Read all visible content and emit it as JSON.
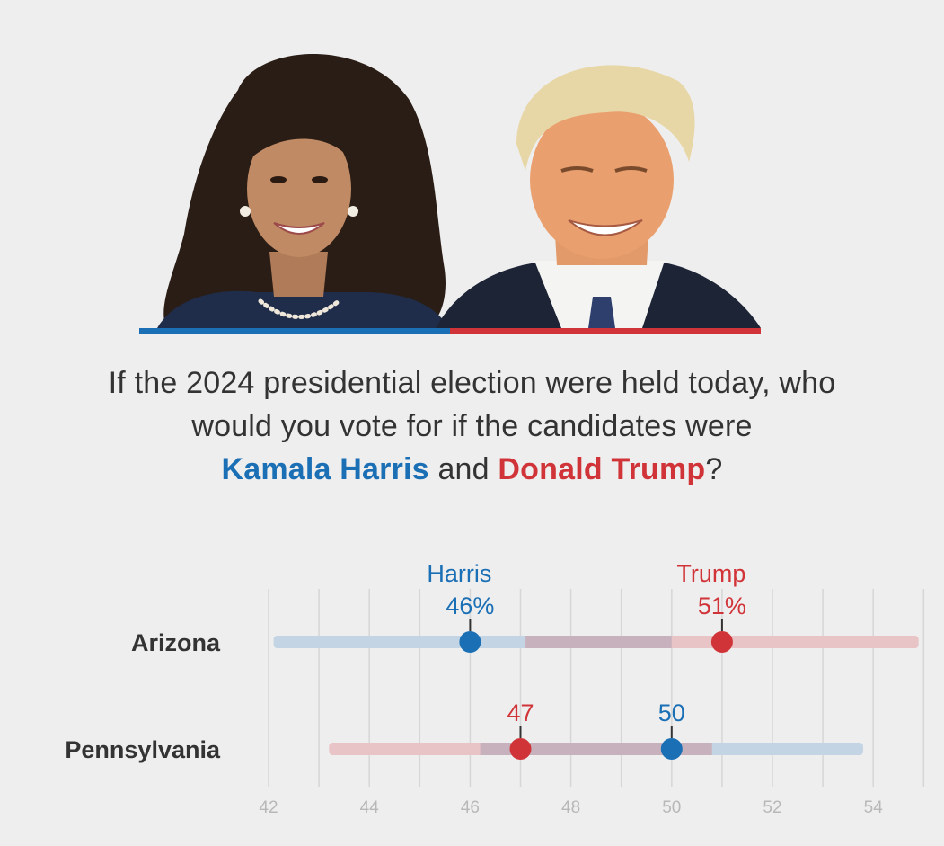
{
  "photos": {
    "left_icon": "harris-portrait-icon",
    "right_icon": "trump-portrait-icon"
  },
  "question": {
    "line1": "If the 2024 presidential election were held today, who",
    "line2": "would you vote for if the candidates were",
    "candidate_a": "Kamala Harris",
    "connector": "and",
    "candidate_b": "Donald Trump",
    "end": "?"
  },
  "colors": {
    "harris": "#1a6fb5",
    "trump": "#d13438",
    "harris_band": "#c3d5e4",
    "trump_band": "#e8c4c6",
    "overlap_band": "#c7b1bc"
  },
  "chart_data": {
    "type": "scatter",
    "title": "",
    "xlabel": "",
    "ylabel": "",
    "xlim": [
      42,
      55
    ],
    "xticks": [
      42,
      44,
      46,
      48,
      50,
      52,
      54
    ],
    "grid": true,
    "rows": [
      {
        "state": "Arizona",
        "harris": {
          "value": 46,
          "label": "46%",
          "name": "Harris",
          "range": [
            42.1,
            50
          ]
        },
        "trump": {
          "value": 51,
          "label": "51%",
          "name": "Trump",
          "range": [
            47.1,
            54.9
          ]
        }
      },
      {
        "state": "Pennsylvania",
        "harris": {
          "value": 50,
          "label": "50",
          "name": "",
          "range": [
            46.2,
            53.8
          ]
        },
        "trump": {
          "value": 47,
          "label": "47",
          "name": "",
          "range": [
            43.2,
            50.8
          ]
        }
      }
    ]
  }
}
